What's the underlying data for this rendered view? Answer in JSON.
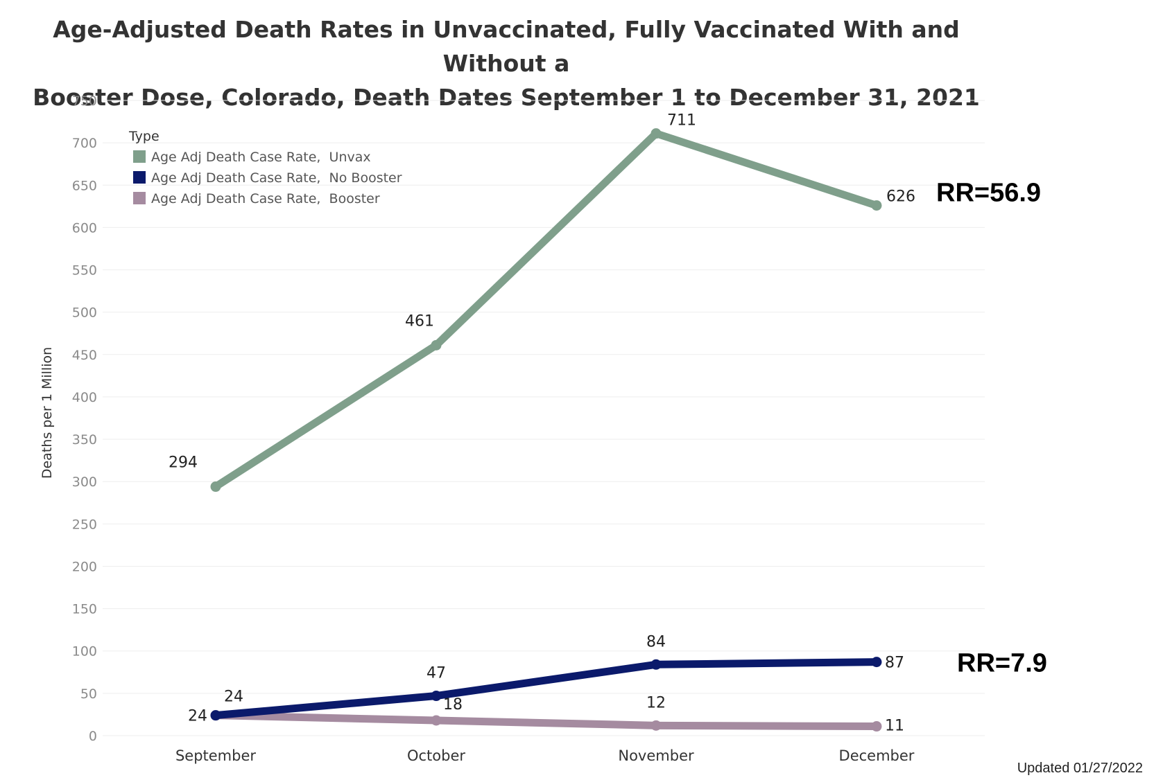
{
  "chart_data": {
    "type": "line",
    "title": "Age-Adjusted Death Rates in Unvaccinated, Fully Vaccinated With and Without a Booster Dose, Colorado, Death Dates September 1 to December 31, 2021",
    "title_lines": [
      "Age-Adjusted Death Rates in Unvaccinated, Fully Vaccinated With and Without a",
      "Booster Dose, Colorado, Death Dates September 1 to December 31, 2021"
    ],
    "xlabel": "",
    "ylabel": "Deaths per 1 Million",
    "categories": [
      "September",
      "October",
      "November",
      "December"
    ],
    "ylim": [
      0,
      750
    ],
    "yticks": [
      0,
      50,
      100,
      150,
      200,
      250,
      300,
      350,
      400,
      450,
      500,
      550,
      600,
      650,
      700,
      750
    ],
    "grid": true,
    "legend": {
      "title": "Type",
      "placement": "top-left"
    },
    "series": [
      {
        "name": "Age Adj Death Case Rate,  Unvax",
        "color": "#7f9f8b",
        "values": [
          294,
          461,
          711,
          626
        ]
      },
      {
        "name": "Age Adj Death Case Rate,  No Booster",
        "color": "#0b1a6b",
        "values": [
          24,
          47,
          84,
          87
        ]
      },
      {
        "name": "Age Adj Death Case Rate,  Booster",
        "color": "#a58ba0",
        "values": [
          24,
          18,
          12,
          11
        ]
      }
    ],
    "annotations": [
      {
        "text": "RR=56.9",
        "series": 0
      },
      {
        "text": "RR=7.9",
        "series": 1
      }
    ]
  },
  "footer": {
    "updated": "Updated 01/27/2022"
  }
}
